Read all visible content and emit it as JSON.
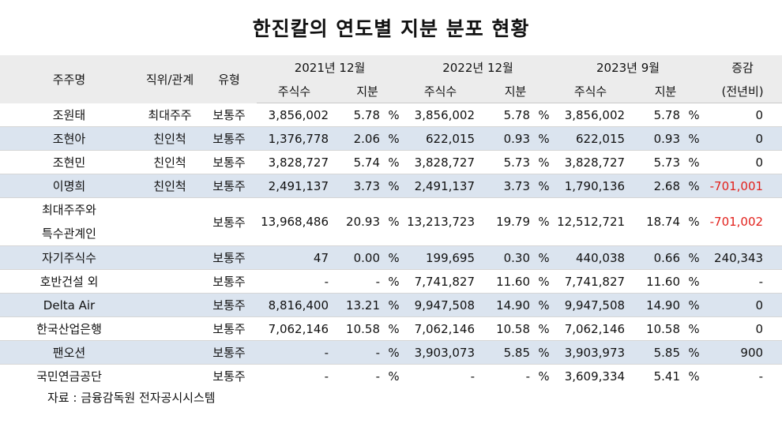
{
  "title": "한진칼의 연도별 지분 분포 현황",
  "header": {
    "shareholder": "주주명",
    "position": "직위/관계",
    "type": "유형",
    "periods": [
      "2021년 12월",
      "2022년 12월",
      "2023년 9월"
    ],
    "shares": "주식수",
    "stake": "지분",
    "change_line1": "증감",
    "change_line2": "(전년비)"
  },
  "rows": [
    {
      "name": "조원태",
      "relation": "최대주주",
      "type": "보통주",
      "v": [
        [
          "3,856,002",
          "5.78",
          "%"
        ],
        [
          "3,856,002",
          "5.78",
          "%"
        ],
        [
          "3,856,002",
          "5.78",
          "%"
        ]
      ],
      "change": "0",
      "neg": false
    },
    {
      "name": "조현아",
      "relation": "친인척",
      "type": "보통주",
      "v": [
        [
          "1,376,778",
          "2.06",
          "%"
        ],
        [
          "622,015",
          "0.93",
          "%"
        ],
        [
          "622,015",
          "0.93",
          "%"
        ]
      ],
      "change": "0",
      "neg": false
    },
    {
      "name": "조현민",
      "relation": "친인척",
      "type": "보통주",
      "v": [
        [
          "3,828,727",
          "5.74",
          "%"
        ],
        [
          "3,828,727",
          "5.73",
          "%"
        ],
        [
          "3,828,727",
          "5.73",
          "%"
        ]
      ],
      "change": "0",
      "neg": false
    },
    {
      "name": "이명희",
      "relation": "친인척",
      "type": "보통주",
      "v": [
        [
          "2,491,137",
          "3.73",
          "%"
        ],
        [
          "2,491,137",
          "3.73",
          "%"
        ],
        [
          "1,790,136",
          "2.68",
          "%"
        ]
      ],
      "change": "-701,001",
      "neg": true
    },
    {
      "name": "최대주주와",
      "name2": "특수관계인",
      "relation": "",
      "type": "보통주",
      "v": [
        [
          "13,968,486",
          "20.93",
          "%"
        ],
        [
          "13,213,723",
          "19.79",
          "%"
        ],
        [
          "12,512,721",
          "18.74",
          "%"
        ]
      ],
      "change": "-701,002",
      "neg": true
    },
    {
      "name": "자기주식수",
      "relation": "",
      "type": "보통주",
      "v": [
        [
          "47",
          "0.00",
          "%"
        ],
        [
          "199,695",
          "0.30",
          "%"
        ],
        [
          "440,038",
          "0.66",
          "%"
        ]
      ],
      "change": "240,343",
      "neg": false
    },
    {
      "name": "호반건설 외",
      "relation": "",
      "type": "보통주",
      "v": [
        [
          "-",
          "-",
          "%"
        ],
        [
          "7,741,827",
          "11.60",
          "%"
        ],
        [
          "7,741,827",
          "11.60",
          "%"
        ]
      ],
      "change": "-",
      "neg": false
    },
    {
      "name": "Delta Air",
      "relation": "",
      "type": "보통주",
      "v": [
        [
          "8,816,400",
          "13.21",
          "%"
        ],
        [
          "9,947,508",
          "14.90",
          "%"
        ],
        [
          "9,947,508",
          "14.90",
          "%"
        ]
      ],
      "change": "0",
      "neg": false
    },
    {
      "name": "한국산업은행",
      "relation": "",
      "type": "보통주",
      "v": [
        [
          "7,062,146",
          "10.58",
          "%"
        ],
        [
          "7,062,146",
          "10.58",
          "%"
        ],
        [
          "7,062,146",
          "10.58",
          "%"
        ]
      ],
      "change": "0",
      "neg": false
    },
    {
      "name": "팬오션",
      "relation": "",
      "type": "보통주",
      "v": [
        [
          "-",
          "-",
          "%"
        ],
        [
          "3,903,073",
          "5.85",
          "%"
        ],
        [
          "3,903,973",
          "5.85",
          "%"
        ]
      ],
      "change": "900",
      "neg": false
    },
    {
      "name": "국민연금공단",
      "relation": "",
      "type": "보통주",
      "v": [
        [
          "-",
          "-",
          "%"
        ],
        [
          "-",
          "-",
          "%"
        ],
        [
          "3,609,334",
          "5.41",
          "%"
        ]
      ],
      "change": "-",
      "neg": false
    }
  ],
  "source": "자료 : 금융감독원 전자공시시스템"
}
